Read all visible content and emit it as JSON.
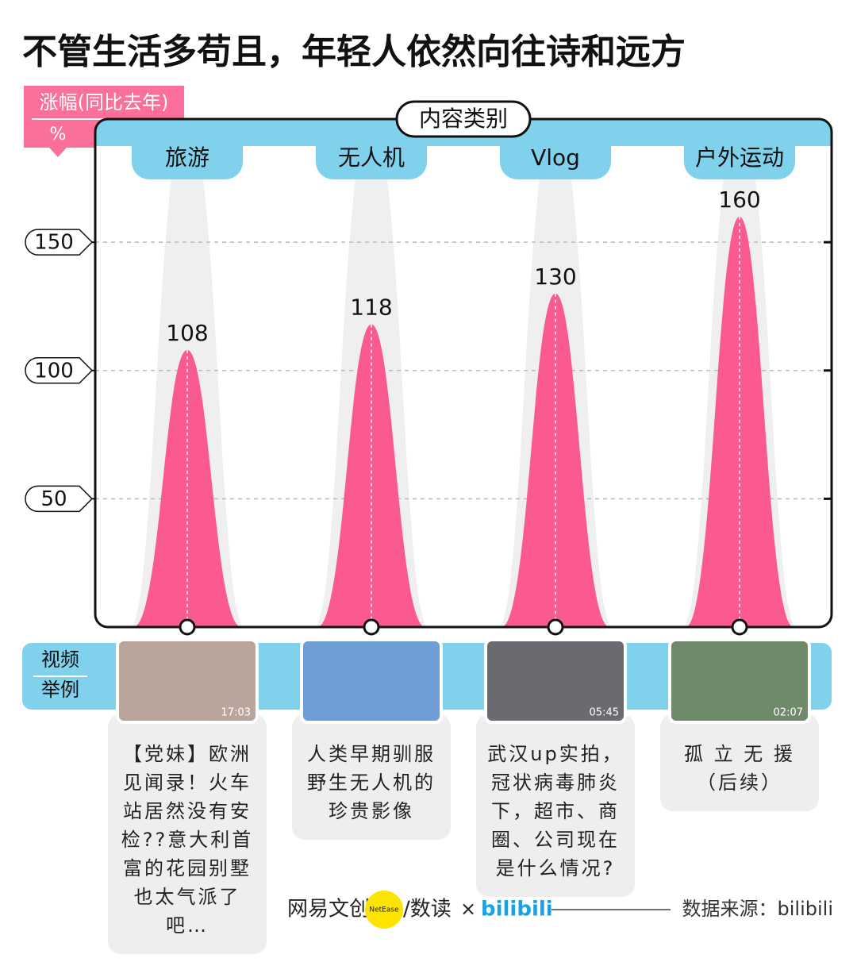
{
  "chart_data": {
    "type": "peak",
    "title": "不管生活多苟且，年轻人依然向往诗和远方",
    "y_label": "涨幅(同比去年)",
    "y_unit": "%",
    "x_label": "内容类别",
    "categories": [
      "旅游",
      "无人机",
      "Vlog",
      "户外运动"
    ],
    "values": [
      108,
      118,
      130,
      160
    ],
    "color": "#fb5a8f",
    "ylim": [
      0,
      198
    ],
    "yticks": [
      50,
      100,
      150
    ],
    "grid": true,
    "examples": {
      "label": [
        "视频",
        "举例"
      ],
      "items": [
        {
          "title": "【党妹】欧洲见闻录！火车站居然没有安检??意大利首富的花园别墅也太气派了吧…",
          "duration": "17:03"
        },
        {
          "title": "人类早期驯服野生无人机的珍贵影像"
        },
        {
          "title": "武汉up实拍，冠状病毒肺炎下，超市、商圈、公司现在是什么情况?",
          "duration": "05:45"
        },
        {
          "title": "孤 立 无 援（后续）",
          "duration": "02:07"
        }
      ]
    },
    "credits": {
      "brand": "网易文创",
      "badge": "NetEase",
      "column": "/数读",
      "times": "×",
      "partner": "bilibili",
      "source": "数据来源：bilibili"
    }
  }
}
